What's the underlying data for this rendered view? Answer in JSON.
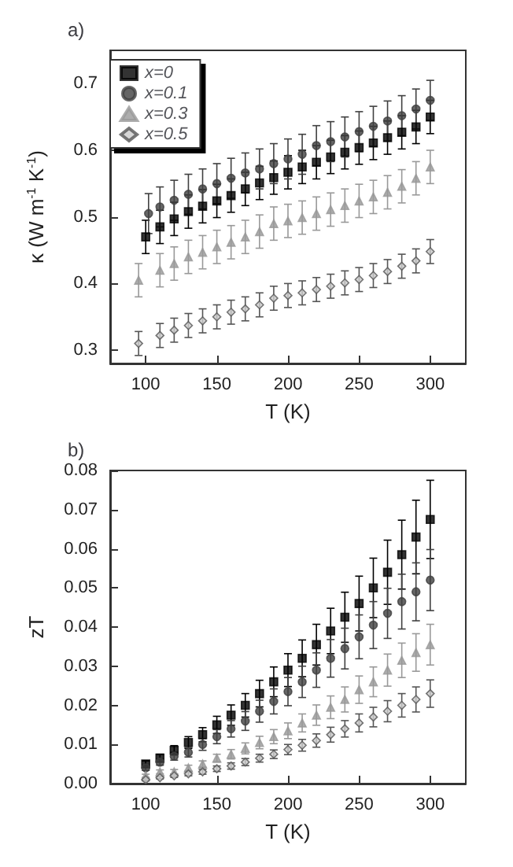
{
  "chart_data": [
    {
      "type": "scatter",
      "title": "a)",
      "xlabel": "T (K)",
      "ylabel": "κ (W m$^{-1}$ K$^{-1}$)",
      "xlim": [
        75,
        325
      ],
      "xticks": [
        100,
        150,
        200,
        250,
        300
      ],
      "ylim": [
        0.28,
        0.75
      ],
      "yticks": [
        0.3,
        0.4,
        0.5,
        0.6,
        0.7
      ],
      "legend": "top left",
      "grid": false,
      "series": [
        {
          "name": "x=0",
          "color": "#000000",
          "marker": "square",
          "x": [
            100,
            110,
            120,
            130,
            140,
            150,
            160,
            170,
            180,
            190,
            200,
            210,
            220,
            230,
            240,
            250,
            260,
            270,
            280,
            290,
            300
          ],
          "values": [
            0.47,
            0.485,
            0.497,
            0.508,
            0.516,
            0.524,
            0.532,
            0.542,
            0.551,
            0.559,
            0.567,
            0.575,
            0.582,
            0.59,
            0.597,
            0.604,
            0.611,
            0.619,
            0.627,
            0.635,
            0.65
          ],
          "errors": [
            0.025,
            0.025,
            0.025,
            0.025,
            0.025,
            0.025,
            0.025,
            0.025,
            0.025,
            0.025,
            0.025,
            0.025,
            0.025,
            0.025,
            0.025,
            0.025,
            0.025,
            0.025,
            0.025,
            0.025,
            0.025
          ]
        },
        {
          "name": "x=0.1",
          "color": "#404040",
          "marker": "circle",
          "x": [
            102,
            110,
            120,
            130,
            140,
            150,
            160,
            170,
            180,
            190,
            200,
            210,
            220,
            230,
            240,
            250,
            260,
            270,
            280,
            290,
            300
          ],
          "values": [
            0.505,
            0.515,
            0.525,
            0.534,
            0.542,
            0.55,
            0.558,
            0.566,
            0.572,
            0.58,
            0.587,
            0.594,
            0.607,
            0.613,
            0.62,
            0.628,
            0.636,
            0.644,
            0.652,
            0.662,
            0.675
          ],
          "errors": [
            0.03,
            0.03,
            0.03,
            0.03,
            0.03,
            0.03,
            0.03,
            0.03,
            0.03,
            0.03,
            0.03,
            0.03,
            0.03,
            0.03,
            0.03,
            0.03,
            0.03,
            0.03,
            0.03,
            0.03,
            0.03
          ]
        },
        {
          "name": "x=0.3",
          "color": "#999999",
          "marker": "triangle",
          "x": [
            95,
            110,
            120,
            130,
            140,
            150,
            160,
            170,
            180,
            190,
            200,
            210,
            220,
            230,
            240,
            250,
            260,
            270,
            280,
            290,
            300
          ],
          "values": [
            0.405,
            0.42,
            0.43,
            0.44,
            0.447,
            0.455,
            0.462,
            0.47,
            0.478,
            0.49,
            0.494,
            0.499,
            0.505,
            0.511,
            0.517,
            0.524,
            0.53,
            0.537,
            0.546,
            0.558,
            0.575
          ],
          "errors": [
            0.025,
            0.025,
            0.025,
            0.025,
            0.025,
            0.025,
            0.025,
            0.025,
            0.025,
            0.025,
            0.025,
            0.025,
            0.025,
            0.025,
            0.025,
            0.025,
            0.025,
            0.025,
            0.025,
            0.025,
            0.025
          ]
        },
        {
          "name": "x=0.5",
          "color": "#cccccc",
          "marker": "diamond",
          "x": [
            95,
            110,
            120,
            130,
            140,
            150,
            160,
            170,
            180,
            190,
            200,
            210,
            220,
            230,
            240,
            250,
            260,
            270,
            280,
            290,
            300
          ],
          "values": [
            0.31,
            0.322,
            0.33,
            0.337,
            0.344,
            0.35,
            0.357,
            0.362,
            0.368,
            0.378,
            0.382,
            0.386,
            0.391,
            0.396,
            0.401,
            0.406,
            0.412,
            0.418,
            0.426,
            0.434,
            0.448
          ],
          "errors": [
            0.018,
            0.018,
            0.018,
            0.018,
            0.018,
            0.018,
            0.018,
            0.018,
            0.018,
            0.018,
            0.018,
            0.018,
            0.018,
            0.018,
            0.018,
            0.018,
            0.018,
            0.018,
            0.018,
            0.018,
            0.018
          ]
        }
      ]
    },
    {
      "type": "scatter",
      "title": "b)",
      "xlabel": "T (K)",
      "ylabel": "zT",
      "xlim": [
        75,
        325
      ],
      "xticks": [
        100,
        150,
        200,
        250,
        300
      ],
      "ylim": [
        0,
        0.08
      ],
      "yticks": [
        {
          "value": 0,
          "label": "0.00"
        },
        0.01,
        0.02,
        0.03,
        0.04,
        0.05,
        0.06,
        0.07,
        0.08
      ],
      "grid": false,
      "series": [
        {
          "color": "#000000",
          "marker": "square",
          "x": [
            100,
            110,
            120,
            130,
            140,
            150,
            160,
            170,
            180,
            190,
            200,
            210,
            220,
            230,
            240,
            250,
            260,
            270,
            280,
            290,
            300
          ],
          "values": [
            0.005,
            0.0065,
            0.0085,
            0.0105,
            0.0125,
            0.015,
            0.0175,
            0.02,
            0.023,
            0.026,
            0.029,
            0.032,
            0.0355,
            0.039,
            0.0425,
            0.046,
            0.05,
            0.054,
            0.0585,
            0.063,
            0.0675
          ],
          "errors": [
            0.0008,
            0.001,
            0.0012,
            0.0015,
            0.0018,
            0.0022,
            0.0026,
            0.003,
            0.0034,
            0.0038,
            0.0042,
            0.0047,
            0.0052,
            0.0058,
            0.0064,
            0.007,
            0.0076,
            0.0082,
            0.0088,
            0.0094,
            0.01
          ]
        },
        {
          "color": "#404040",
          "marker": "circle",
          "x": [
            100,
            110,
            120,
            130,
            140,
            150,
            160,
            170,
            180,
            190,
            200,
            210,
            220,
            230,
            240,
            250,
            260,
            270,
            280,
            290,
            300
          ],
          "values": [
            0.004,
            0.0055,
            0.007,
            0.008,
            0.01,
            0.012,
            0.014,
            0.016,
            0.0185,
            0.021,
            0.0235,
            0.026,
            0.029,
            0.032,
            0.0345,
            0.0375,
            0.0405,
            0.0435,
            0.0465,
            0.049,
            0.052
          ],
          "errors": [
            0.0006,
            0.0008,
            0.001,
            0.0012,
            0.0015,
            0.0018,
            0.0021,
            0.0024,
            0.0028,
            0.0032,
            0.0036,
            0.004,
            0.0044,
            0.0048,
            0.0052,
            0.0056,
            0.006,
            0.0064,
            0.007,
            0.0074,
            0.0078
          ]
        },
        {
          "color": "#999999",
          "marker": "triangle",
          "x": [
            100,
            110,
            120,
            130,
            140,
            150,
            160,
            170,
            180,
            190,
            200,
            210,
            220,
            230,
            240,
            250,
            260,
            270,
            280,
            290,
            300
          ],
          "values": [
            0.002,
            0.003,
            0.003,
            0.004,
            0.005,
            0.0065,
            0.0075,
            0.009,
            0.0105,
            0.012,
            0.0135,
            0.0155,
            0.0175,
            0.0195,
            0.0215,
            0.024,
            0.026,
            0.029,
            0.0315,
            0.0335,
            0.0355
          ],
          "errors": [
            0.0004,
            0.0005,
            0.0006,
            0.0007,
            0.0008,
            0.001,
            0.0012,
            0.0014,
            0.0016,
            0.0018,
            0.002,
            0.0023,
            0.0026,
            0.0029,
            0.0032,
            0.0035,
            0.0038,
            0.0041,
            0.0044,
            0.0048,
            0.0052
          ]
        },
        {
          "color": "#cccccc",
          "marker": "diamond",
          "x": [
            100,
            110,
            120,
            130,
            140,
            150,
            160,
            170,
            180,
            190,
            200,
            210,
            220,
            230,
            240,
            250,
            260,
            270,
            280,
            290,
            300
          ],
          "values": [
            0.001,
            0.0015,
            0.002,
            0.0025,
            0.003,
            0.0038,
            0.0045,
            0.0055,
            0.0065,
            0.0075,
            0.0087,
            0.0098,
            0.011,
            0.0125,
            0.014,
            0.0155,
            0.017,
            0.0185,
            0.02,
            0.0215,
            0.023
          ],
          "errors": [
            0.0003,
            0.0003,
            0.0004,
            0.0005,
            0.0006,
            0.0007,
            0.0008,
            0.0009,
            0.001,
            0.0011,
            0.0013,
            0.0015,
            0.0017,
            0.0019,
            0.0021,
            0.0023,
            0.0025,
            0.0027,
            0.003,
            0.0032,
            0.0035
          ]
        }
      ]
    }
  ]
}
